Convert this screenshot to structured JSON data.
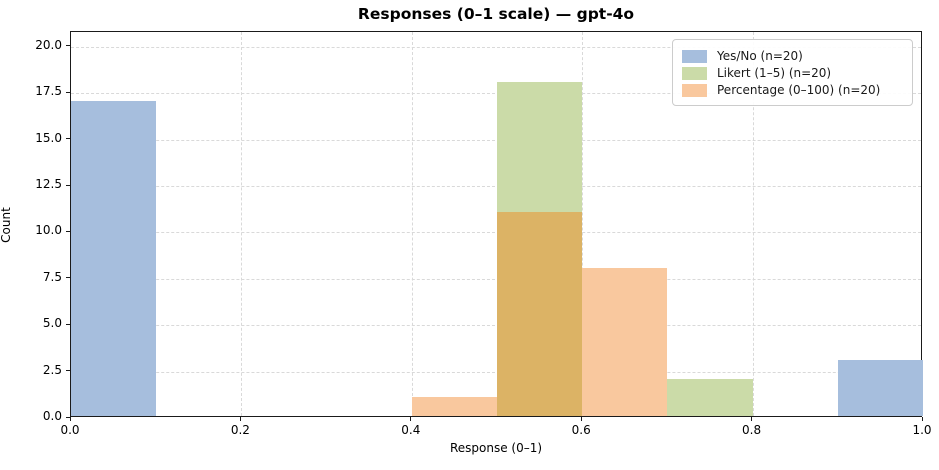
{
  "chart_data": {
    "type": "bar",
    "subtype": "overlapping-histogram",
    "title": "Responses (0–1 scale) — gpt-4o",
    "xlabel": "Response (0–1)",
    "ylabel": "Count",
    "xlim": [
      0.0,
      1.0
    ],
    "ylim": [
      0.0,
      20.8
    ],
    "bin_width": 0.1,
    "grid": true,
    "grid_style": "dashed",
    "legend_position": "upper right",
    "xticks": [
      {
        "v": 0.0,
        "label": "0.0"
      },
      {
        "v": 0.2,
        "label": "0.2"
      },
      {
        "v": 0.4,
        "label": "0.4"
      },
      {
        "v": 0.6,
        "label": "0.6"
      },
      {
        "v": 0.8,
        "label": "0.8"
      },
      {
        "v": 1.0,
        "label": "1.0"
      }
    ],
    "yticks": [
      {
        "v": 0.0,
        "label": "0.0"
      },
      {
        "v": 2.5,
        "label": "2.5"
      },
      {
        "v": 5.0,
        "label": "5.0"
      },
      {
        "v": 7.5,
        "label": "7.5"
      },
      {
        "v": 10.0,
        "label": "10.0"
      },
      {
        "v": 12.5,
        "label": "12.5"
      },
      {
        "v": 15.0,
        "label": "15.0"
      },
      {
        "v": 17.5,
        "label": "17.5"
      },
      {
        "v": 20.0,
        "label": "20.0"
      }
    ],
    "series": [
      {
        "name": "Yes/No (n=20)",
        "color": "#a6bedd",
        "bins": [
          {
            "x0": 0.0,
            "x1": 0.1,
            "count": 17
          },
          {
            "x0": 0.9,
            "x1": 1.0,
            "count": 3
          }
        ]
      },
      {
        "name": "Likert (1–5) (n=20)",
        "color": "#cbdba8",
        "bins": [
          {
            "x0": 0.5,
            "x1": 0.6,
            "count": 18
          },
          {
            "x0": 0.7,
            "x1": 0.8,
            "count": 2
          }
        ]
      },
      {
        "name": "Percentage (0–100) (n=20)",
        "color": "#f9c89e",
        "bins": [
          {
            "x0": 0.4,
            "x1": 0.5,
            "count": 1
          },
          {
            "x0": 0.5,
            "x1": 0.6,
            "count": 11
          },
          {
            "x0": 0.6,
            "x1": 0.7,
            "count": 8
          }
        ]
      }
    ],
    "overlaps": [
      {
        "x0": 0.5,
        "x1": 0.6,
        "count": 11,
        "color": "#dcb365",
        "between": [
          "Likert (1–5) (n=20)",
          "Percentage (0–100) (n=20)"
        ]
      }
    ]
  },
  "colors": {
    "spine": "#1a1a1a",
    "grid": "#d9d9d9",
    "background": "#ffffff",
    "legend_border": "#cccccc"
  }
}
